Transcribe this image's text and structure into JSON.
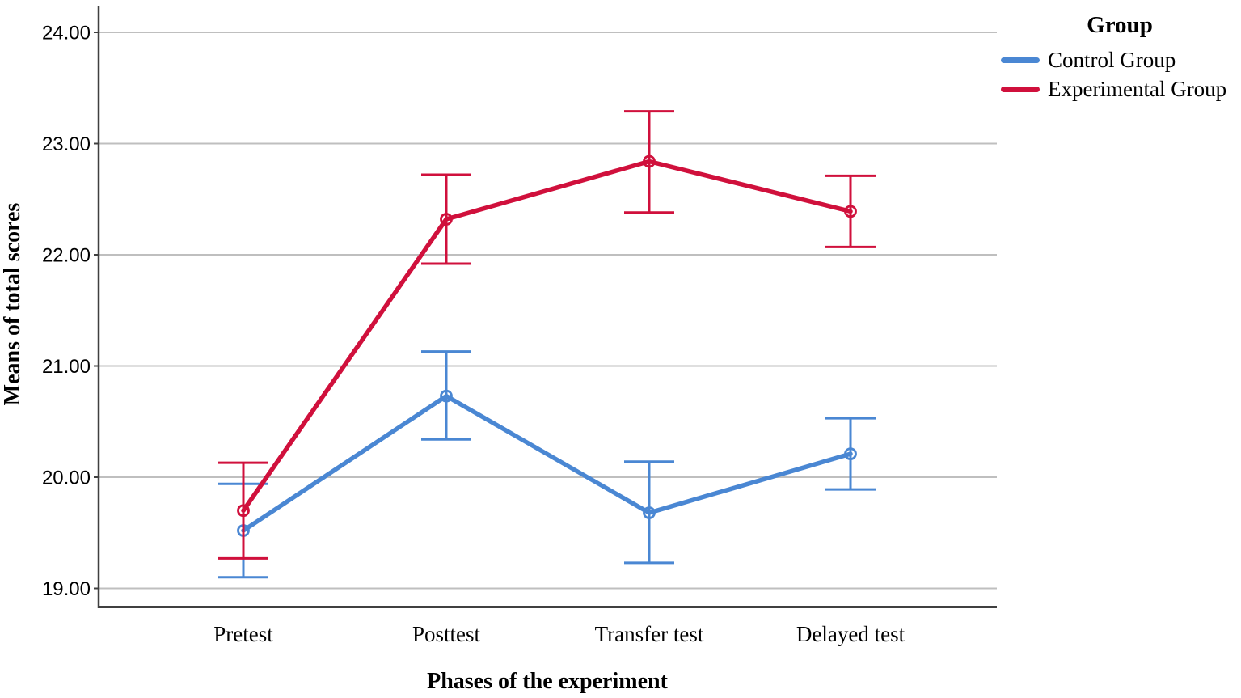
{
  "chart_data": {
    "type": "line",
    "xlabel": "Phases of the experiment",
    "ylabel": "Means of total scores",
    "categories": [
      "Pretest",
      "Posttest",
      "Transfer test",
      "Delayed test"
    ],
    "yticks": [
      {
        "v": 24,
        "label": "24.00"
      },
      {
        "v": 23,
        "label": "23.00"
      },
      {
        "v": 22,
        "label": "22.00"
      },
      {
        "v": 21,
        "label": "21.00"
      },
      {
        "v": 20,
        "label": "20.00"
      },
      {
        "v": 19,
        "label": "19.00"
      }
    ],
    "ylim": [
      18.8,
      24.25
    ],
    "grid": "horizontal",
    "error_bars": true,
    "legend": {
      "title": "Group",
      "position": "top-right"
    },
    "colors": {
      "gridline": "#bfbfbf",
      "axis": "#404040",
      "text": "#000000"
    },
    "series": [
      {
        "name": "Control Group",
        "color": "#4a87d3",
        "values": [
          19.52,
          20.73,
          19.68,
          20.21
        ],
        "ci_low": [
          19.1,
          20.34,
          19.23,
          19.89
        ],
        "ci_high": [
          19.94,
          21.13,
          20.14,
          20.53
        ]
      },
      {
        "name": "Experimental Group",
        "color": "#d0103c",
        "values": [
          19.7,
          22.32,
          22.84,
          22.39
        ],
        "ci_low": [
          19.27,
          21.92,
          22.38,
          22.07
        ],
        "ci_high": [
          20.13,
          22.72,
          23.29,
          22.71
        ]
      }
    ]
  }
}
